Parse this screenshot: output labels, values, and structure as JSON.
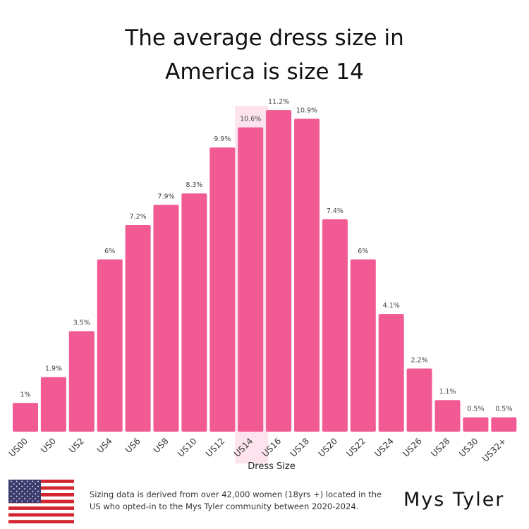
{
  "chart_data": {
    "type": "bar",
    "title": "The average dress size in America is size 14",
    "xlabel": "Dress Size",
    "ylabel": "",
    "categories": [
      "US00",
      "US0",
      "US2",
      "US4",
      "US6",
      "US8",
      "US10",
      "US12",
      "US14",
      "US16",
      "US18",
      "US20",
      "US22",
      "US24",
      "US26",
      "US28",
      "US30",
      "US32+"
    ],
    "values": [
      1,
      1.9,
      3.5,
      6,
      7.2,
      7.9,
      8.3,
      9.9,
      10.6,
      11.2,
      10.9,
      7.4,
      6,
      4.1,
      2.2,
      1.1,
      0.5,
      0.5
    ],
    "data_labels": [
      "1%",
      "1.9%",
      "3.5%",
      "6%",
      "7.2%",
      "7.9%",
      "8.3%",
      "9.9%",
      "10.6%",
      "11.2%",
      "10.9%",
      "7.4%",
      "6%",
      "4.1%",
      "2.2%",
      "1.1%",
      "0.5%",
      "0.5%"
    ],
    "highlight_category": "US14",
    "grid": false,
    "colors": {
      "bar": "#f15a93",
      "highlight": "#fde3ee"
    }
  },
  "footer": {
    "note_line1": "Sizing data is derived from over 42,000 women (18yrs +)  located in the",
    "note_line2": "US who opted-in to the Mys Tyler community between 2020-2024.",
    "brand": "Mys Tyler",
    "flag_icon": "us-flag-icon"
  }
}
